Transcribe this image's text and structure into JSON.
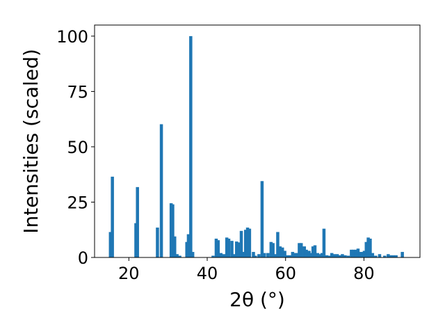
{
  "chart_data": {
    "type": "bar",
    "title": "",
    "xlabel": "2θ (°)",
    "ylabel": "Intensities (scaled)",
    "xlim": [
      11.25,
      94.3
    ],
    "ylim": [
      0,
      105
    ],
    "xticks": [
      20,
      40,
      60,
      80
    ],
    "yticks": [
      0,
      25,
      50,
      75,
      100
    ],
    "grid": false,
    "color": "#1f77b4",
    "bar_width": 0.8,
    "peaks": [
      {
        "x": 15.3,
        "y": 11.5
      },
      {
        "x": 15.8,
        "y": 36.5
      },
      {
        "x": 21.8,
        "y": 15.5
      },
      {
        "x": 22.2,
        "y": 31.8
      },
      {
        "x": 27.3,
        "y": 13.5
      },
      {
        "x": 28.3,
        "y": 60.2
      },
      {
        "x": 30.8,
        "y": 24.5
      },
      {
        "x": 31.2,
        "y": 24.0
      },
      {
        "x": 31.7,
        "y": 9.5
      },
      {
        "x": 32.3,
        "y": 1.5
      },
      {
        "x": 33.0,
        "y": 0.8
      },
      {
        "x": 34.8,
        "y": 7.0
      },
      {
        "x": 35.2,
        "y": 10.5
      },
      {
        "x": 35.8,
        "y": 100.0
      },
      {
        "x": 36.3,
        "y": 2.5
      },
      {
        "x": 41.5,
        "y": 0.8
      },
      {
        "x": 42.3,
        "y": 8.5
      },
      {
        "x": 42.8,
        "y": 7.8
      },
      {
        "x": 43.5,
        "y": 2.0
      },
      {
        "x": 44.3,
        "y": 1.5
      },
      {
        "x": 45.0,
        "y": 9.0
      },
      {
        "x": 45.5,
        "y": 8.5
      },
      {
        "x": 46.3,
        "y": 7.5
      },
      {
        "x": 46.9,
        "y": 1.5
      },
      {
        "x": 47.5,
        "y": 7.2
      },
      {
        "x": 48.0,
        "y": 6.8
      },
      {
        "x": 48.7,
        "y": 12.0
      },
      {
        "x": 49.2,
        "y": 2.5
      },
      {
        "x": 49.8,
        "y": 12.5
      },
      {
        "x": 50.3,
        "y": 13.5
      },
      {
        "x": 50.8,
        "y": 13.0
      },
      {
        "x": 51.8,
        "y": 2.5
      },
      {
        "x": 52.3,
        "y": 0.8
      },
      {
        "x": 53.2,
        "y": 1.5
      },
      {
        "x": 54.0,
        "y": 34.5
      },
      {
        "x": 54.6,
        "y": 2.0
      },
      {
        "x": 55.5,
        "y": 2.0
      },
      {
        "x": 56.3,
        "y": 7.0
      },
      {
        "x": 56.8,
        "y": 6.5
      },
      {
        "x": 57.5,
        "y": 1.5
      },
      {
        "x": 58.0,
        "y": 11.5
      },
      {
        "x": 58.6,
        "y": 5.0
      },
      {
        "x": 59.2,
        "y": 4.5
      },
      {
        "x": 59.8,
        "y": 3.0
      },
      {
        "x": 60.5,
        "y": 1.0
      },
      {
        "x": 61.2,
        "y": 1.0
      },
      {
        "x": 61.8,
        "y": 2.5
      },
      {
        "x": 62.5,
        "y": 2.0
      },
      {
        "x": 63.0,
        "y": 2.0
      },
      {
        "x": 63.5,
        "y": 6.5
      },
      {
        "x": 64.0,
        "y": 6.5
      },
      {
        "x": 64.8,
        "y": 5.0
      },
      {
        "x": 65.3,
        "y": 3.5
      },
      {
        "x": 66.0,
        "y": 3.0
      },
      {
        "x": 66.5,
        "y": 2.0
      },
      {
        "x": 67.0,
        "y": 5.0
      },
      {
        "x": 67.5,
        "y": 5.5
      },
      {
        "x": 68.2,
        "y": 2.0
      },
      {
        "x": 68.8,
        "y": 1.5
      },
      {
        "x": 69.3,
        "y": 2.0
      },
      {
        "x": 69.8,
        "y": 13.0
      },
      {
        "x": 70.5,
        "y": 1.0
      },
      {
        "x": 71.2,
        "y": 0.8
      },
      {
        "x": 71.8,
        "y": 2.0
      },
      {
        "x": 72.5,
        "y": 1.5
      },
      {
        "x": 73.2,
        "y": 1.5
      },
      {
        "x": 73.8,
        "y": 1.0
      },
      {
        "x": 74.5,
        "y": 1.5
      },
      {
        "x": 75.2,
        "y": 1.0
      },
      {
        "x": 76.0,
        "y": 0.8
      },
      {
        "x": 76.8,
        "y": 3.5
      },
      {
        "x": 77.3,
        "y": 3.5
      },
      {
        "x": 77.9,
        "y": 3.5
      },
      {
        "x": 78.5,
        "y": 4.0
      },
      {
        "x": 79.0,
        "y": 2.5
      },
      {
        "x": 79.6,
        "y": 2.5
      },
      {
        "x": 80.1,
        "y": 3.0
      },
      {
        "x": 80.6,
        "y": 7.0
      },
      {
        "x": 81.1,
        "y": 9.0
      },
      {
        "x": 81.6,
        "y": 8.5
      },
      {
        "x": 82.2,
        "y": 2.0
      },
      {
        "x": 83.0,
        "y": 0.8
      },
      {
        "x": 84.0,
        "y": 1.5
      },
      {
        "x": 85.3,
        "y": 0.8
      },
      {
        "x": 86.2,
        "y": 1.5
      },
      {
        "x": 86.8,
        "y": 1.0
      },
      {
        "x": 87.5,
        "y": 1.0
      },
      {
        "x": 88.2,
        "y": 1.0
      },
      {
        "x": 89.8,
        "y": 2.5
      }
    ]
  }
}
